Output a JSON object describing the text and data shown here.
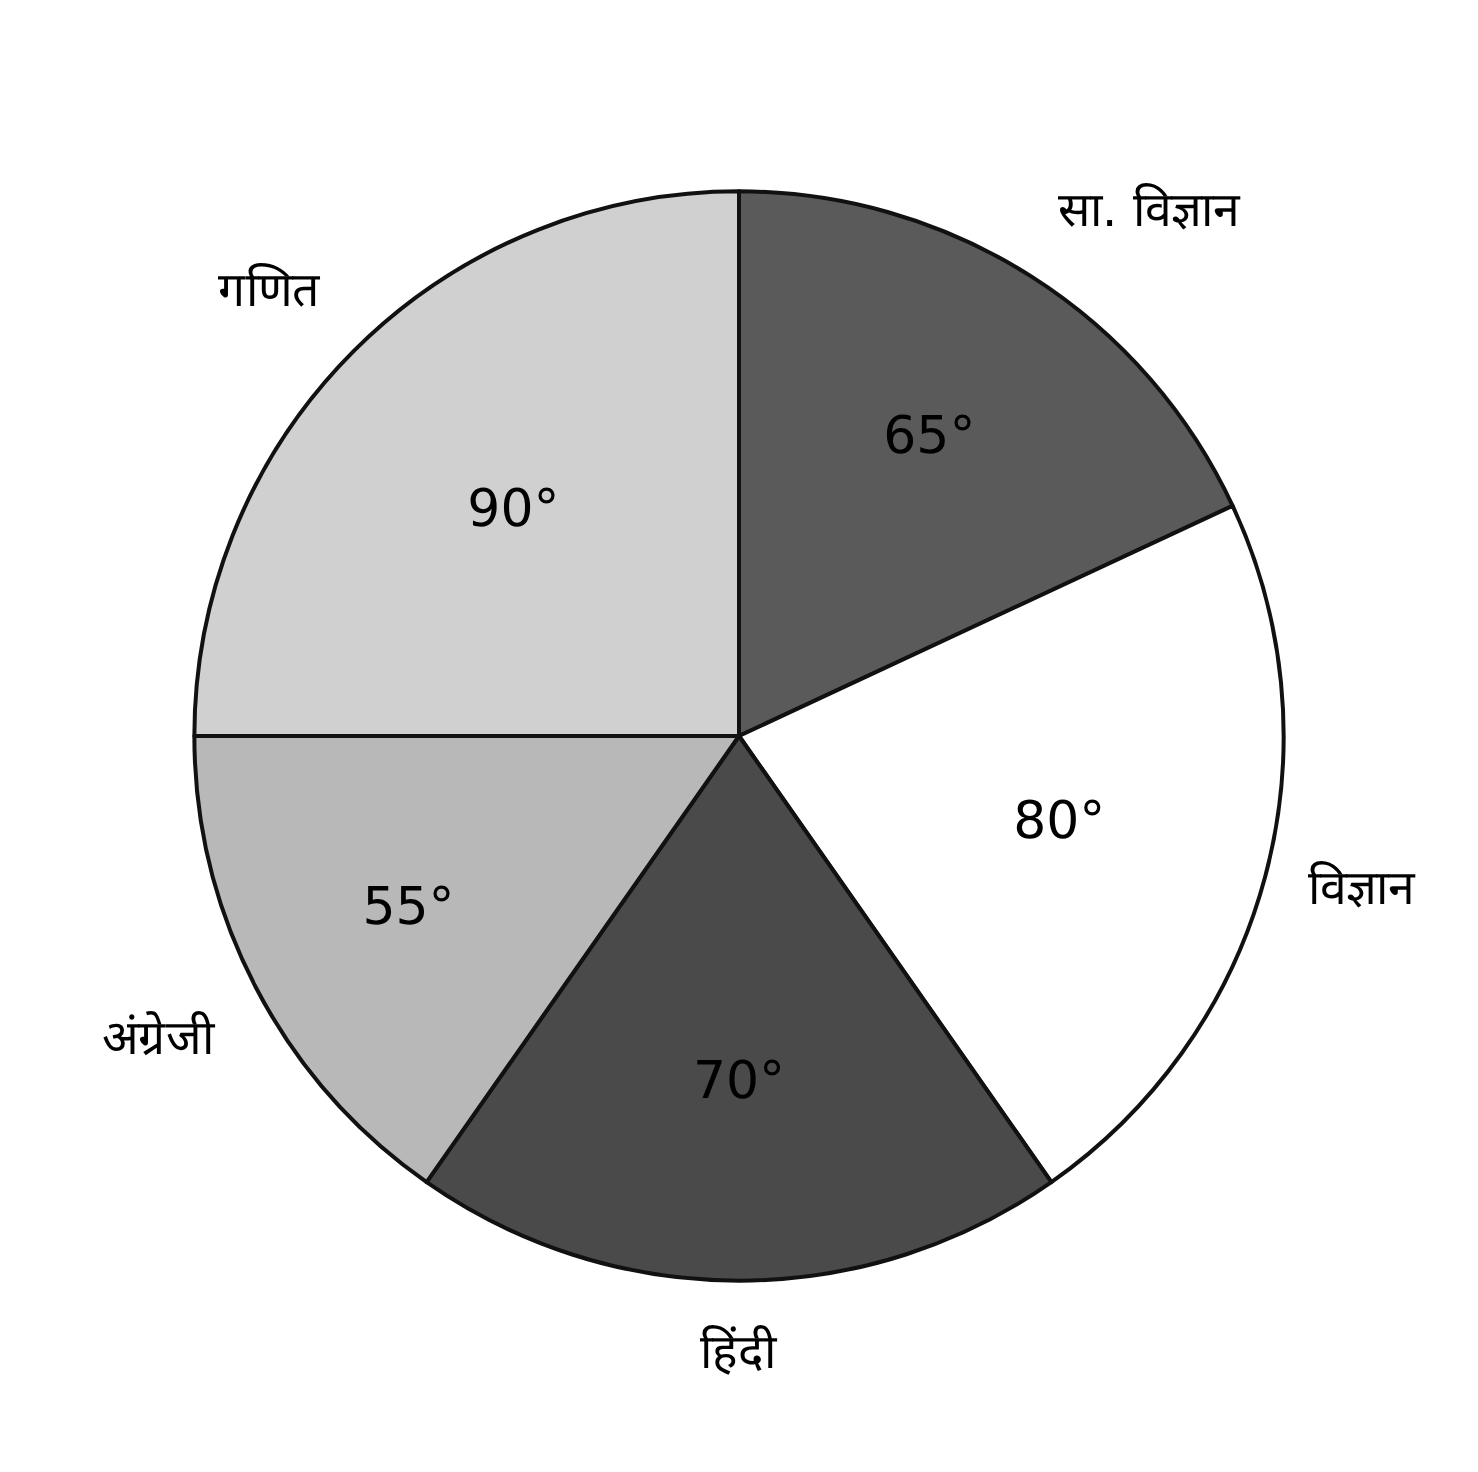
{
  "chart_data": {
    "type": "pie",
    "categories": [
      "सा. विज्ञान",
      "विज्ञान",
      "हिंदी",
      "अंग्रेजी",
      "गणित"
    ],
    "values": [
      65,
      80,
      70,
      55,
      90
    ],
    "value_labels": [
      "65°",
      "80°",
      "70°",
      "55°",
      "90°"
    ],
    "colors": [
      "#5a5a5a",
      "#ffffff",
      "#4a4a4a",
      "#b8b8b8",
      "#d0d0d0"
    ],
    "legend": false
  }
}
